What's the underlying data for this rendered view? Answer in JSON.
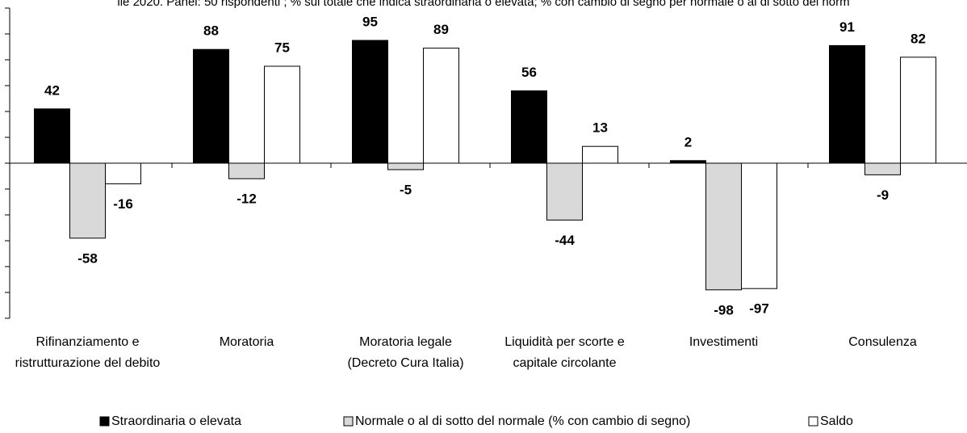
{
  "chart_data": {
    "type": "bar",
    "title": "ile 2020. Panel: 50 rispondenti ; % sul totale che indica straordinaria o elevata; % con cambio di segno per normale o al di sotto del norm",
    "categories": [
      "Rifinanziamento e ristrutturazione del debito",
      "Moratoria",
      "Moratoria legale (Decreto Cura Italia)",
      "Liquidità per scorte e capitale circolante",
      "Investimenti",
      "Consulenza"
    ],
    "series": [
      {
        "name": "Straordinaria o elevata",
        "color": "#000000",
        "values": [
          42,
          88,
          95,
          56,
          2,
          91
        ]
      },
      {
        "name": "Normale o al di sotto del normale (% con cambio di segno)",
        "color": "#d9d9d9",
        "values": [
          -58,
          -12,
          -5,
          -44,
          -98,
          -9
        ]
      },
      {
        "name": "Saldo",
        "color": "#ffffff",
        "values": [
          -16,
          75,
          89,
          13,
          -97,
          82
        ]
      }
    ],
    "ylim": [
      -120,
      120
    ],
    "yticks": [
      -120,
      -100,
      -80,
      -60,
      -40,
      -20,
      0,
      20,
      40,
      60,
      80,
      100,
      120
    ],
    "legend": "bottom"
  }
}
